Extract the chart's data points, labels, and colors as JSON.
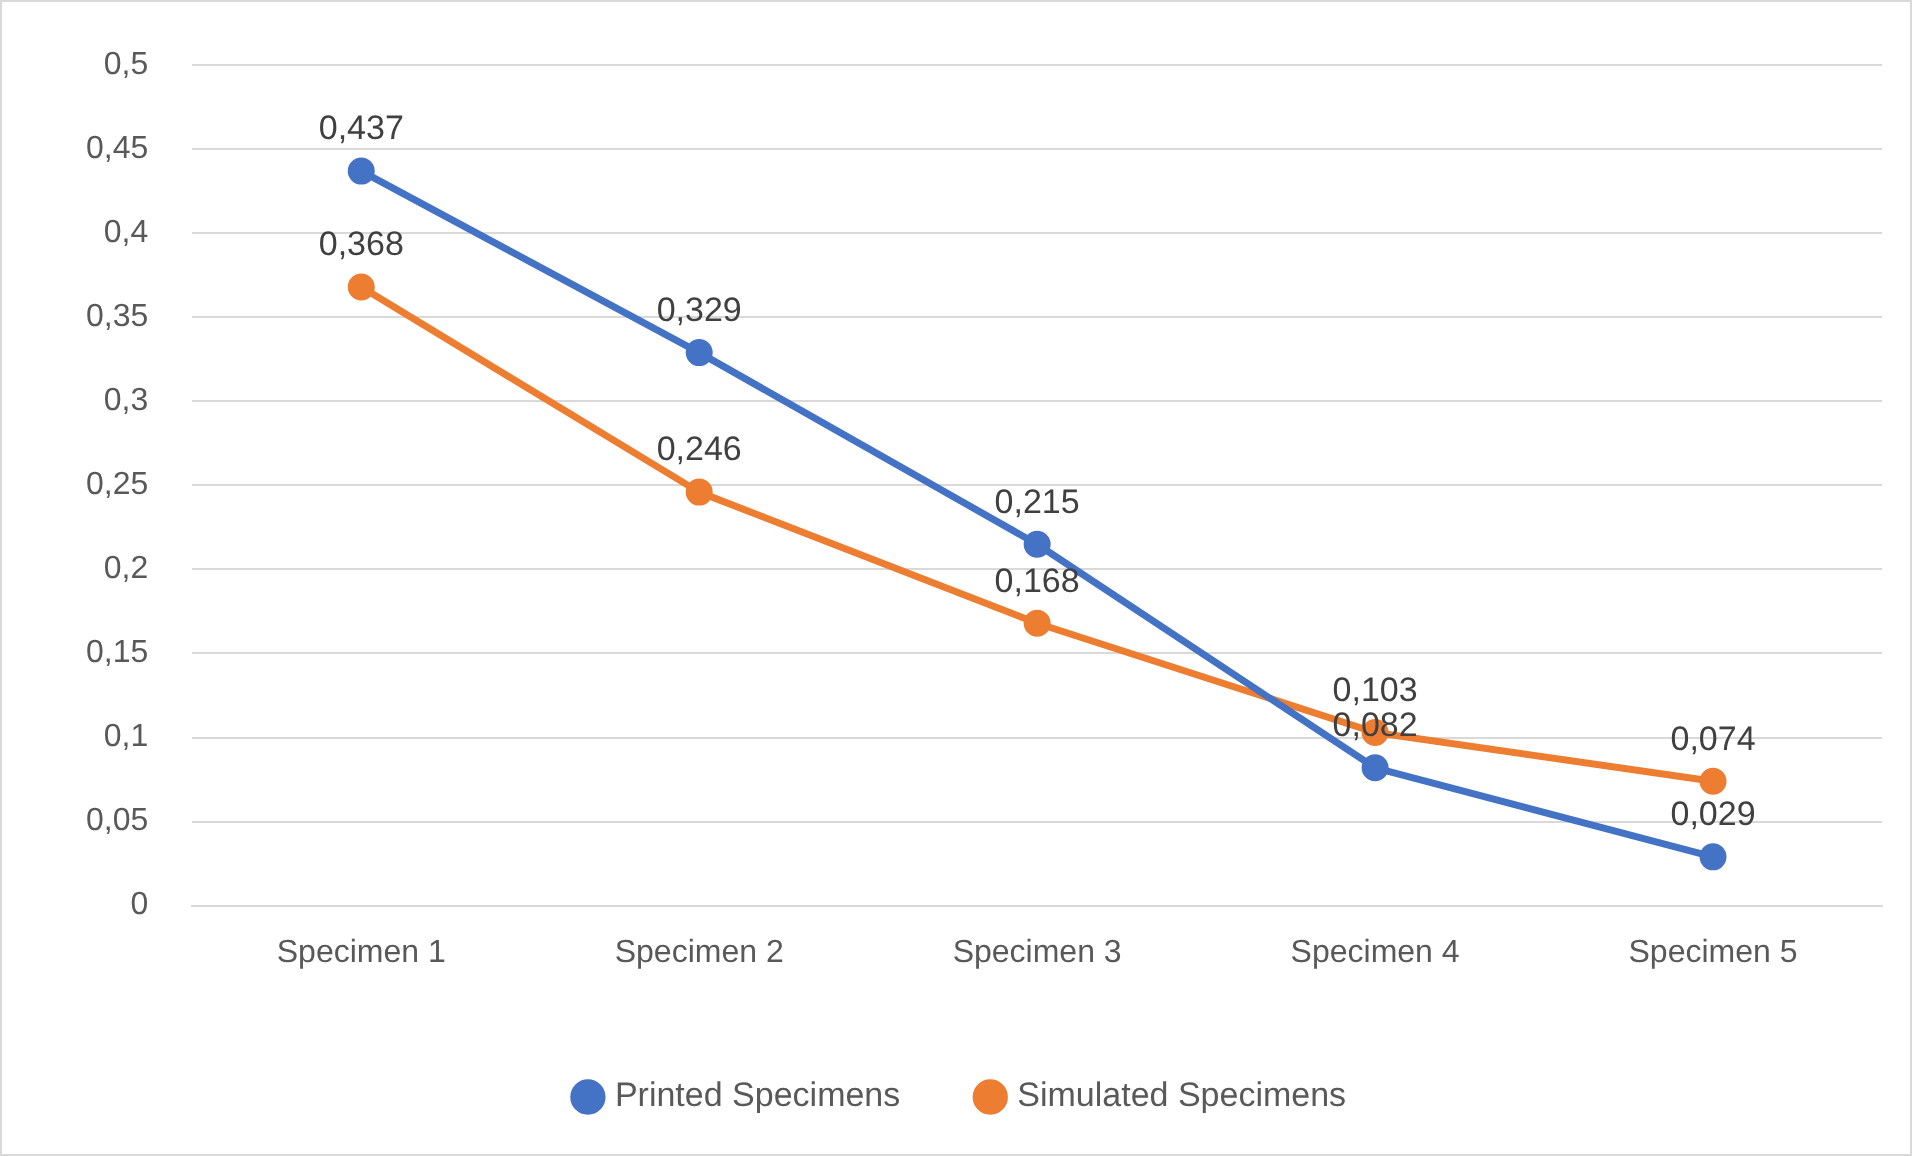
{
  "chart_data": {
    "type": "line",
    "categories": [
      "Specimen 1",
      "Specimen 2",
      "Specimen 3",
      "Specimen 4",
      "Specimen 5"
    ],
    "series": [
      {
        "name": "Printed Specimens",
        "color": "#4472c4",
        "values": [
          0.437,
          0.329,
          0.215,
          0.082,
          0.029
        ],
        "value_labels": [
          "0,437",
          "0,329",
          "0,215",
          "0,082",
          "0,029"
        ]
      },
      {
        "name": "Simulated Specimens",
        "color": "#ed7d31",
        "values": [
          0.368,
          0.246,
          0.168,
          0.103,
          0.074
        ],
        "value_labels": [
          "0,368",
          "0,246",
          "0,168",
          "0,103",
          "0,074"
        ]
      }
    ],
    "ylim": [
      0,
      0.5
    ],
    "yticks": [
      {
        "value": 0,
        "label": "0"
      },
      {
        "value": 0.05,
        "label": "0,05"
      },
      {
        "value": 0.1,
        "label": "0,1"
      },
      {
        "value": 0.15,
        "label": "0,15"
      },
      {
        "value": 0.2,
        "label": "0,2"
      },
      {
        "value": 0.25,
        "label": "0,25"
      },
      {
        "value": 0.3,
        "label": "0,3"
      },
      {
        "value": 0.35,
        "label": "0,35"
      },
      {
        "value": 0.4,
        "label": "0,4"
      },
      {
        "value": 0.45,
        "label": "0,45"
      },
      {
        "value": 0.5,
        "label": "0,5"
      }
    ],
    "grid": "y",
    "legend": "bottom",
    "marker": "circle",
    "line_style": "solid"
  }
}
